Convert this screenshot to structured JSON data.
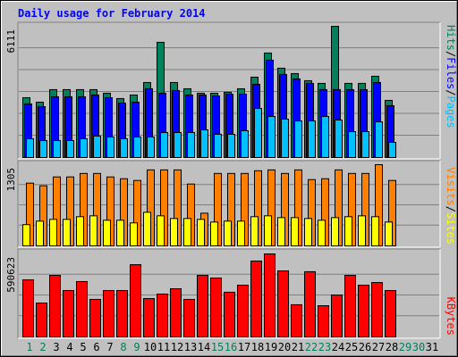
{
  "chart_data": [
    {
      "type": "bar",
      "title": "Daily usage for February 2014",
      "series": [
        {
          "name": "Hits",
          "color": "#00805c",
          "values": [
            2787,
            2579,
            3162,
            3162,
            3162,
            3162,
            2995,
            2746,
            2912,
            3494,
            5366,
            3494,
            3203,
            2995,
            2995,
            3037,
            3203,
            3744,
            4867,
            4160,
            3910,
            3578,
            3453,
            6111,
            3453,
            3453,
            3786,
            2662,
            null,
            null,
            null
          ]
        },
        {
          "name": "Files",
          "color": "#0000ff",
          "values": [
            2496,
            2371,
            2829,
            2829,
            2829,
            2912,
            2787,
            2538,
            2579,
            3203,
            2995,
            3120,
            2912,
            2912,
            2870,
            2954,
            2954,
            3411,
            4534,
            3869,
            3661,
            3453,
            3162,
            3162,
            3162,
            3162,
            3494,
            2413,
            null,
            null,
            null
          ]
        },
        {
          "name": "Pages",
          "color": "#00c0ff",
          "values": [
            874,
            790,
            790,
            790,
            874,
            998,
            957,
            874,
            957,
            957,
            1165,
            1165,
            1165,
            1290,
            1082,
            1082,
            1248,
            2288,
            1914,
            1789,
            1706,
            1706,
            1914,
            1747,
            1206,
            1206,
            1664,
            707,
            null,
            null,
            null
          ]
        }
      ],
      "ylim": [
        0,
        6111
      ],
      "yticks": [
        6111
      ],
      "legend_separator": "/"
    },
    {
      "type": "bar",
      "series": [
        {
          "name": "Visits",
          "color": "#ff8000",
          "values": [
            1008,
            966,
            1108,
            1108,
            1164,
            1164,
            1108,
            1079,
            1051,
            1221,
            1221,
            1221,
            994,
            525,
            1164,
            1164,
            1164,
            1207,
            1221,
            1164,
            1221,
            1065,
            1079,
            1221,
            1164,
            1164,
            1305,
            1051,
            null,
            null,
            null
          ]
        },
        {
          "name": "Sites",
          "color": "#ffff00",
          "values": [
            341,
            398,
            426,
            426,
            469,
            483,
            412,
            412,
            369,
            540,
            483,
            440,
            440,
            426,
            383,
            398,
            398,
            469,
            483,
            454,
            454,
            440,
            412,
            454,
            469,
            483,
            469,
            383,
            null,
            null,
            null
          ]
        }
      ],
      "ylim": [
        0,
        1305
      ],
      "yticks": [
        1305
      ],
      "legend_separator": "/"
    },
    {
      "type": "bar",
      "categories": [
        "1",
        "2",
        "3",
        "4",
        "5",
        "6",
        "7",
        "8",
        "9",
        "10",
        "11",
        "12",
        "13",
        "14",
        "15",
        "16",
        "17",
        "18",
        "19",
        "20",
        "21",
        "22",
        "23",
        "24",
        "25",
        "26",
        "27",
        "28",
        "29",
        "30",
        "31"
      ],
      "category_colors": [
        "#00805c",
        "#00805c",
        "#000000",
        "#000000",
        "#000000",
        "#000000",
        "#000000",
        "#00805c",
        "#00805c",
        "#000000",
        "#000000",
        "#000000",
        "#000000",
        "#000000",
        "#00805c",
        "#00805c",
        "#000000",
        "#000000",
        "#000000",
        "#000000",
        "#000000",
        "#00805c",
        "#00805c",
        "#000000",
        "#000000",
        "#000000",
        "#000000",
        "#000000",
        "#00805c",
        "#00805c",
        "#000000"
      ],
      "series": [
        {
          "name": "KBytes",
          "color": "#ff0000",
          "values": [
            406000,
            241000,
            438000,
            330000,
            394000,
            267000,
            330000,
            330000,
            514000,
            273000,
            305000,
            343000,
            267000,
            438000,
            419000,
            318000,
            368000,
            540000,
            590623,
            470000,
            229000,
            464000,
            222000,
            298000,
            438000,
            368000,
            387000,
            330000,
            null,
            null,
            null
          ]
        }
      ],
      "ylim": [
        0,
        590623
      ],
      "yticks": [
        590623
      ]
    }
  ]
}
